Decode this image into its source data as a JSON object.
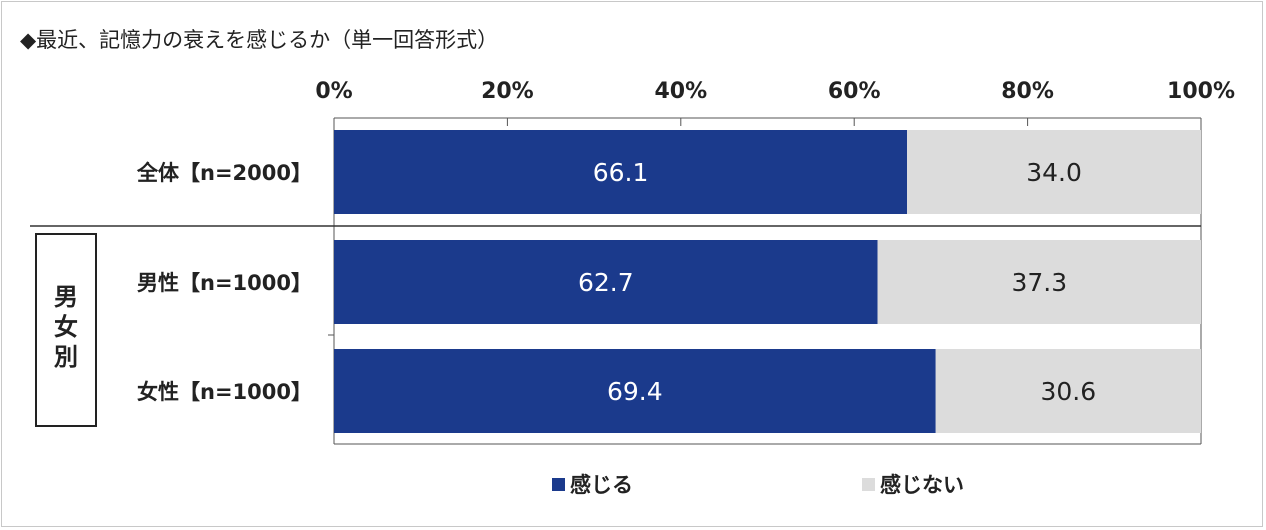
{
  "title": "◆最近、記憶力の衰えを感じるか（単一回答形式）",
  "group_label": "男女別",
  "colors": {
    "feel": "#1b3a8c",
    "not_feel": "#dcdcdc"
  },
  "chart_data": {
    "type": "bar",
    "orientation": "horizontal",
    "stacked": true,
    "percent": true,
    "categories": [
      "全体【n=2000】",
      "男性【n=1000】",
      "女性【n=1000】"
    ],
    "series": [
      {
        "name": "感じる",
        "values": [
          66.1,
          62.7,
          69.4
        ]
      },
      {
        "name": "感じない",
        "values": [
          34.0,
          37.3,
          30.6
        ]
      }
    ],
    "xlim": [
      0,
      100
    ],
    "xticks": [
      "0%",
      "20%",
      "40%",
      "60%",
      "80%",
      "100%"
    ],
    "legend": "bottom",
    "grid": false
  }
}
